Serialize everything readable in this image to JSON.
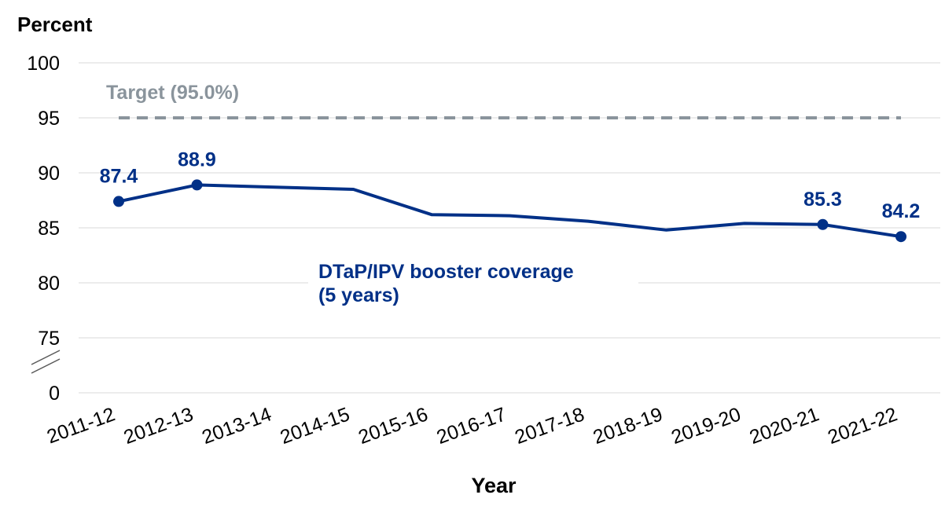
{
  "chart_data": {
    "type": "line",
    "ylabel": "Percent",
    "xlabel": "Year",
    "categories": [
      "2011-12",
      "2012-13",
      "2013-14",
      "2014-15",
      "2015-16",
      "2016-17",
      "2017-18",
      "2018-19",
      "2019-20",
      "2020-21",
      "2021-22"
    ],
    "y_ticks": [
      "100",
      "95",
      "90",
      "85",
      "80",
      "75",
      "0"
    ],
    "ylim": [
      75,
      100
    ],
    "axis_break": true,
    "grid": true,
    "series": [
      {
        "name": "DTaP/IPV booster coverage (5 years)",
        "name_lines": [
          "DTaP/IPV booster coverage",
          "(5 years)"
        ],
        "color": "#003087",
        "values": [
          87.4,
          88.9,
          88.7,
          88.5,
          86.2,
          86.1,
          85.6,
          84.8,
          85.4,
          85.3,
          84.2
        ],
        "labeled_points": [
          {
            "index": 0,
            "label": "87.4"
          },
          {
            "index": 1,
            "label": "88.9"
          },
          {
            "index": 9,
            "label": "85.3"
          },
          {
            "index": 10,
            "label": "84.2"
          }
        ]
      }
    ],
    "target": {
      "label": "Target (95.0%)",
      "value": 95.0,
      "color": "#8A949C"
    }
  }
}
